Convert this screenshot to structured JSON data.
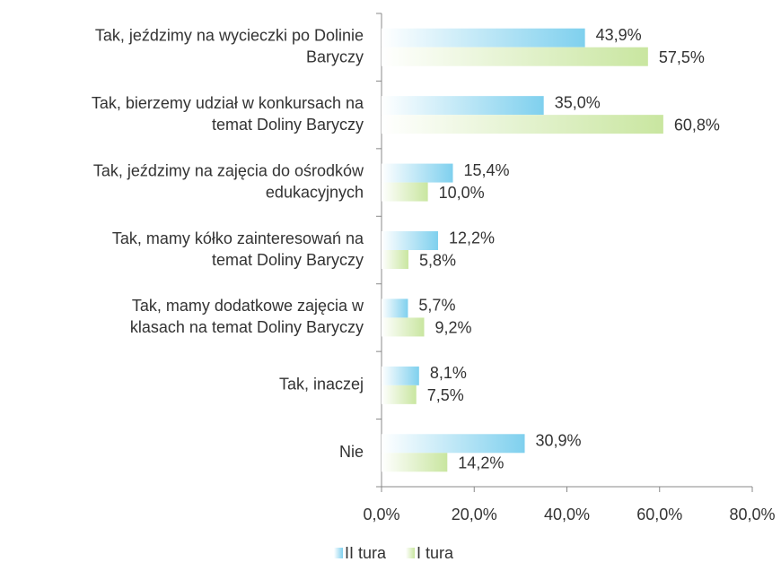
{
  "chart_data": {
    "type": "bar",
    "orientation": "horizontal",
    "categories": [
      [
        "Tak, jeździmy na wycieczki po Dolinie",
        "Baryczy"
      ],
      [
        "Tak, bierzemy udział w konkursach na",
        "temat Doliny Baryczy"
      ],
      [
        "Tak, jeździmy na zajęcia do ośrodków",
        "edukacyjnych"
      ],
      [
        "Tak, mamy kółko zainteresowań na",
        "temat Doliny Baryczy"
      ],
      [
        "Tak, mamy dodatkowe zajęcia w",
        "klasach na temat Doliny Baryczy"
      ],
      [
        "Tak, inaczej"
      ],
      [
        "Nie"
      ]
    ],
    "series": [
      {
        "name": "II tura",
        "color": "#7fd0ee",
        "values": [
          43.9,
          35.0,
          15.4,
          12.2,
          5.7,
          8.1,
          30.9
        ],
        "value_labels": [
          "43,9%",
          "35,0%",
          "15,4%",
          "12,2%",
          "5,7%",
          "8,1%",
          "30,9%"
        ]
      },
      {
        "name": "I tura",
        "color": "#c9e6a0",
        "values": [
          57.5,
          60.8,
          10.0,
          5.8,
          9.2,
          7.5,
          14.2
        ],
        "value_labels": [
          "57,5%",
          "60,8%",
          "10,0%",
          "5,8%",
          "9,2%",
          "7,5%",
          "14,2%"
        ]
      }
    ],
    "xlim": [
      0,
      80
    ],
    "xticks": [
      {
        "value": 0,
        "label": "0,0%"
      },
      {
        "value": 20,
        "label": "20,0%"
      },
      {
        "value": 40,
        "label": "40,0%"
      },
      {
        "value": 60,
        "label": "60,0%"
      },
      {
        "value": 80,
        "label": "80,0%"
      }
    ],
    "legend": "bottom"
  }
}
